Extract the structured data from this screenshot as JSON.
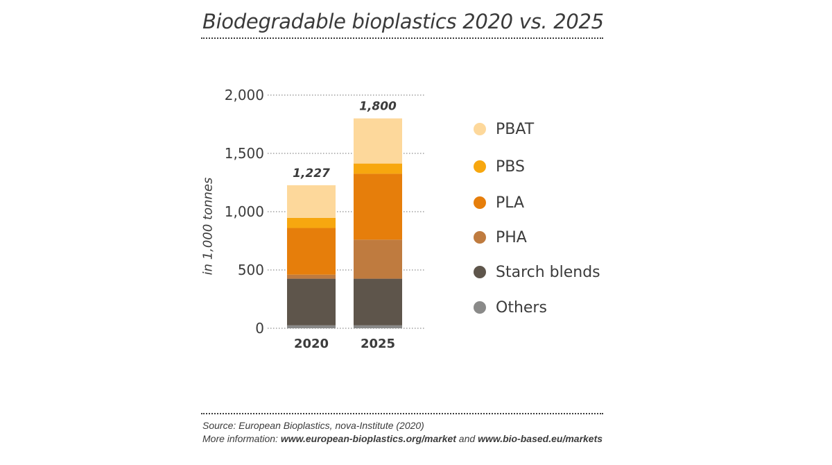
{
  "title": "Biodegradable bioplastics 2020 vs. 2025",
  "chart_data": {
    "type": "bar",
    "stacked": true,
    "title": "Biodegradable bioplastics 2020 vs. 2025",
    "ylabel": "in 1,000 tonnes",
    "xlabel": "",
    "categories": [
      "2020",
      "2025"
    ],
    "ylim": [
      0,
      2000
    ],
    "yticks": [
      0,
      500,
      1000,
      1500,
      2000
    ],
    "ytick_labels": [
      "0",
      "500",
      "1,000",
      "1,500",
      "2,000"
    ],
    "totals": [
      1227,
      1800
    ],
    "total_labels": [
      "1,227",
      "1,800"
    ],
    "series": [
      {
        "name": "Others",
        "color": "#8a8a89",
        "values": [
          25,
          25
        ]
      },
      {
        "name": "Starch blends",
        "color": "#5e554b",
        "values": [
          400,
          400
        ]
      },
      {
        "name": "PHA",
        "color": "#bf7b3f",
        "values": [
          35,
          335
        ]
      },
      {
        "name": "PLA",
        "color": "#e67e0b",
        "values": [
          400,
          565
        ]
      },
      {
        "name": "PBS",
        "color": "#f7a70f",
        "values": [
          87,
          88
        ]
      },
      {
        "name": "PBAT",
        "color": "#fdd89b",
        "values": [
          280,
          387
        ]
      }
    ],
    "legend_order": [
      "PBAT",
      "PBS",
      "PLA",
      "PHA",
      "Starch blends",
      "Others"
    ],
    "legend_position": "right",
    "grid": "dotted horizontal"
  },
  "source": {
    "line1": "Source: European Bioplastics, nova-Institute (2020)",
    "line2_prefix": "More information: ",
    "link1": "www.european-bioplastics.org/market",
    "line2_middle": " and ",
    "link2": "www.bio-based.eu/markets"
  }
}
